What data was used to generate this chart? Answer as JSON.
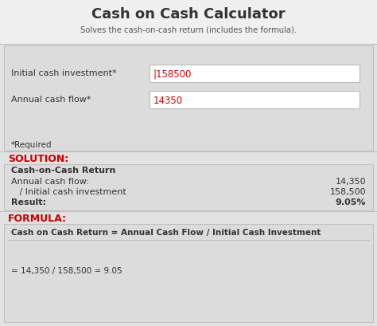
{
  "title": "Cash on Cash Calculator",
  "subtitle": "Solves the cash-on-cash return (includes the formula).",
  "bg_outer": "#e2e2e2",
  "bg_header": "#f0f0f0",
  "bg_section": "#dcdcdc",
  "bg_box": "#e8e8e8",
  "bg_white": "#ffffff",
  "red": "#cc0000",
  "dark": "#333333",
  "mid": "#555555",
  "border": "#bbbbbb",
  "input1_label": "Initial cash investment*",
  "input1_value": "|158500",
  "input2_label": "Annual cash flow*",
  "input2_value": "14350",
  "required_text": "*Required",
  "solution_label": "SOLUTION:",
  "coc_title": "Cash-on-Cash Return",
  "row1_label": "Annual cash flow:",
  "row1_value": "14,350",
  "row2_label": "   / Initial cash investment",
  "row2_value": "158,500",
  "row3_label": "Result:",
  "row3_value": "9.05%",
  "formula_label": "FORMULA:",
  "formula_line1": "Cash on Cash Return = Annual Cash Flow / Initial Cash Investment",
  "formula_line2": "= 14,350 / 158,500 = 9.05"
}
